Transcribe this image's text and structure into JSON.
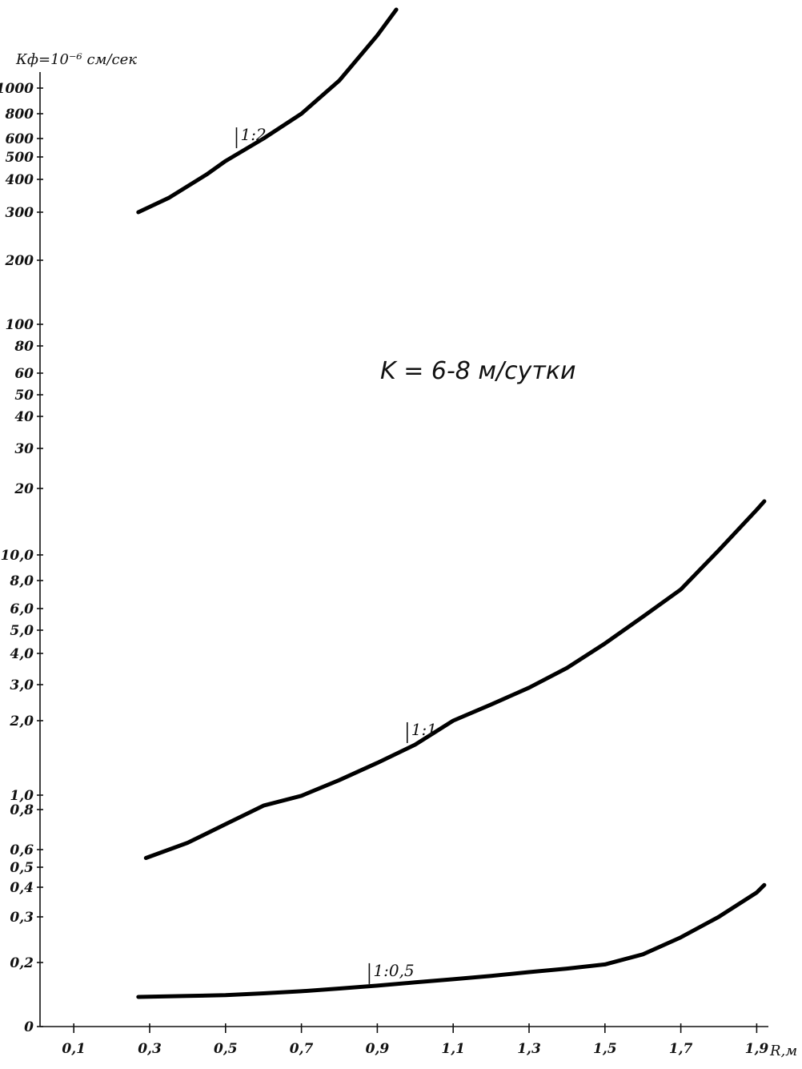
{
  "chart_data": {
    "type": "line",
    "ylabel": "Кф=10⁻⁶ см/сек",
    "xlabel": "R,м",
    "annotation": "K = 6-8 м/сутки",
    "x_ticks": [
      {
        "value": 0.1,
        "label": "0,1"
      },
      {
        "value": 0.3,
        "label": "0,3"
      },
      {
        "value": 0.5,
        "label": "0,5"
      },
      {
        "value": 0.7,
        "label": "0,7"
      },
      {
        "value": 0.9,
        "label": "0,9"
      },
      {
        "value": 1.1,
        "label": "1,1"
      },
      {
        "value": 1.3,
        "label": "1,3"
      },
      {
        "value": 1.5,
        "label": "1,5"
      },
      {
        "value": 1.7,
        "label": "1,7"
      },
      {
        "value": 1.9,
        "label": "1,9"
      }
    ],
    "y_ticks": [
      {
        "value": 0,
        "label": "0"
      },
      {
        "value": 0.2,
        "label": "0,2"
      },
      {
        "value": 0.3,
        "label": "0,3"
      },
      {
        "value": 0.4,
        "label": "0,4"
      },
      {
        "value": 0.5,
        "label": "0,5"
      },
      {
        "value": 0.6,
        "label": "0,6"
      },
      {
        "value": 0.8,
        "label": "0,8"
      },
      {
        "value": 1.0,
        "label": "1,0"
      },
      {
        "value": 2.0,
        "label": "2,0"
      },
      {
        "value": 3.0,
        "label": "3,0"
      },
      {
        "value": 4.0,
        "label": "4,0"
      },
      {
        "value": 5.0,
        "label": "5,0"
      },
      {
        "value": 6.0,
        "label": "6,0"
      },
      {
        "value": 8.0,
        "label": "8,0"
      },
      {
        "value": 10.0,
        "label": "10,0"
      },
      {
        "value": 20,
        "label": "20"
      },
      {
        "value": 30,
        "label": "30"
      },
      {
        "value": 40,
        "label": "40"
      },
      {
        "value": 50,
        "label": "50"
      },
      {
        "value": 60,
        "label": "60"
      },
      {
        "value": 80,
        "label": "80"
      },
      {
        "value": 100,
        "label": "100"
      },
      {
        "value": 200,
        "label": "200"
      },
      {
        "value": 300,
        "label": "300"
      },
      {
        "value": 400,
        "label": "400"
      },
      {
        "value": 500,
        "label": "500"
      },
      {
        "value": 600,
        "label": "600"
      },
      {
        "value": 800,
        "label": "800"
      },
      {
        "value": 1000,
        "label": "1000"
      }
    ],
    "series": [
      {
        "name": "1:2",
        "x": [
          0.27,
          0.35,
          0.45,
          0.5,
          0.6,
          0.7,
          0.8,
          0.9,
          0.95
        ],
        "y": [
          300,
          340,
          420,
          480,
          600,
          800,
          1050,
          1400,
          1650
        ]
      },
      {
        "name": "1:1",
        "x": [
          0.29,
          0.4,
          0.5,
          0.6,
          0.7,
          0.8,
          0.9,
          1.0,
          1.1,
          1.2,
          1.3,
          1.4,
          1.5,
          1.6,
          1.7,
          1.8,
          1.9,
          1.92
        ],
        "y": [
          0.55,
          0.63,
          0.72,
          0.85,
          0.99,
          1.15,
          1.35,
          1.6,
          2.0,
          2.4,
          2.9,
          3.5,
          4.4,
          5.6,
          7.3,
          10.5,
          16,
          17.5
        ]
      },
      {
        "name": "1:0,5",
        "x": [
          0.27,
          0.4,
          0.5,
          0.6,
          0.7,
          0.8,
          0.9,
          1.0,
          1.1,
          1.2,
          1.3,
          1.4,
          1.5,
          1.6,
          1.7,
          1.8,
          1.9,
          1.92
        ],
        "y": [
          0.08,
          0.082,
          0.084,
          0.088,
          0.093,
          0.1,
          0.108,
          0.118,
          0.128,
          0.14,
          0.155,
          0.17,
          0.19,
          0.215,
          0.25,
          0.3,
          0.38,
          0.41
        ]
      }
    ]
  }
}
